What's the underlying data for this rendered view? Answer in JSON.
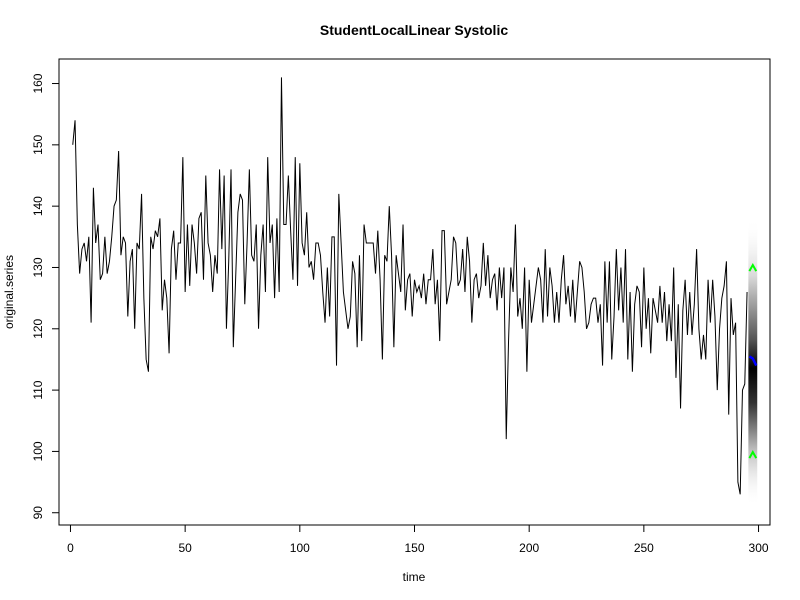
{
  "chart_data": {
    "type": "line",
    "title": "StudentLocalLinear Systolic",
    "xlabel": "time",
    "ylabel": "original.series",
    "xlim": [
      -5,
      305
    ],
    "ylim": [
      88,
      164
    ],
    "xticks": [
      0,
      50,
      100,
      150,
      200,
      250,
      300
    ],
    "yticks": [
      90,
      100,
      110,
      120,
      130,
      140,
      150,
      160
    ],
    "grid": false,
    "legend": "none",
    "colors": {
      "series": "#000000",
      "forecast_mean": "#0000ff",
      "forecast_interval": "#00ff00",
      "forecast_density": "#000000"
    },
    "series": [
      {
        "values": [
          150,
          154,
          137,
          129,
          133,
          134,
          131,
          135,
          121,
          143,
          134,
          137,
          128,
          129,
          135,
          129,
          131,
          135,
          140,
          141,
          149,
          132,
          135,
          134,
          122,
          131,
          133,
          120,
          134,
          133,
          142,
          125,
          115,
          113,
          135,
          133,
          136,
          135,
          138,
          123,
          128,
          125,
          116,
          133,
          136,
          128,
          134,
          134,
          148,
          126,
          137,
          127,
          137,
          134,
          129,
          138,
          139,
          128,
          145,
          134,
          132,
          126,
          132,
          129,
          146,
          133,
          145,
          120,
          131,
          146,
          117,
          128,
          139,
          142,
          141,
          124,
          134,
          146,
          132,
          131,
          137,
          120,
          132,
          137,
          126,
          148,
          134,
          137,
          125,
          138,
          126,
          161,
          137,
          137,
          145,
          136,
          128,
          148,
          127,
          147,
          134,
          132,
          139,
          130,
          131,
          128,
          134,
          134,
          132,
          126,
          121,
          130,
          122,
          135,
          135,
          114,
          142,
          134,
          126,
          123,
          120,
          122,
          131,
          129,
          117,
          132,
          118,
          137,
          134,
          134,
          134,
          134,
          129,
          136,
          128,
          115,
          132,
          131,
          140,
          132,
          117,
          132,
          129,
          126,
          137,
          123,
          128,
          129,
          122,
          128,
          126,
          127,
          125,
          129,
          124,
          128,
          128,
          133,
          124,
          128,
          118,
          136,
          136,
          124,
          126,
          128,
          135,
          134,
          127,
          128,
          133,
          126,
          135,
          131,
          121,
          128,
          129,
          125,
          127,
          134,
          127,
          132,
          125,
          128,
          129,
          123,
          130,
          125,
          130,
          102,
          118,
          130,
          126,
          137,
          122,
          125,
          120,
          130,
          113,
          128,
          121,
          124,
          127,
          130,
          128,
          121,
          133,
          122,
          130,
          127,
          121,
          126,
          121,
          128,
          132,
          124,
          127,
          122,
          128,
          121,
          126,
          131,
          130,
          126,
          120,
          121,
          124,
          125,
          125,
          121,
          124,
          114,
          131,
          121,
          131,
          115,
          122,
          133,
          123,
          130,
          121,
          133,
          115,
          126,
          113,
          124,
          127,
          126,
          117,
          130,
          120,
          125,
          116,
          125,
          123,
          121,
          127,
          121,
          126,
          118,
          124,
          118,
          130,
          112,
          124,
          107,
          123,
          128,
          119,
          126,
          119,
          124,
          133,
          120,
          115,
          119,
          115,
          128,
          121,
          128,
          122,
          110,
          120,
          125,
          127,
          131,
          106,
          125,
          119,
          121,
          95,
          93,
          110,
          111,
          126
        ]
      }
    ],
    "forecast": {
      "x_start": 296,
      "x_end": 299,
      "mean_start": 115.5,
      "mean_end": 114,
      "upper": 130,
      "lower": 99.5,
      "density_top": 138,
      "density_bottom": 91
    }
  }
}
